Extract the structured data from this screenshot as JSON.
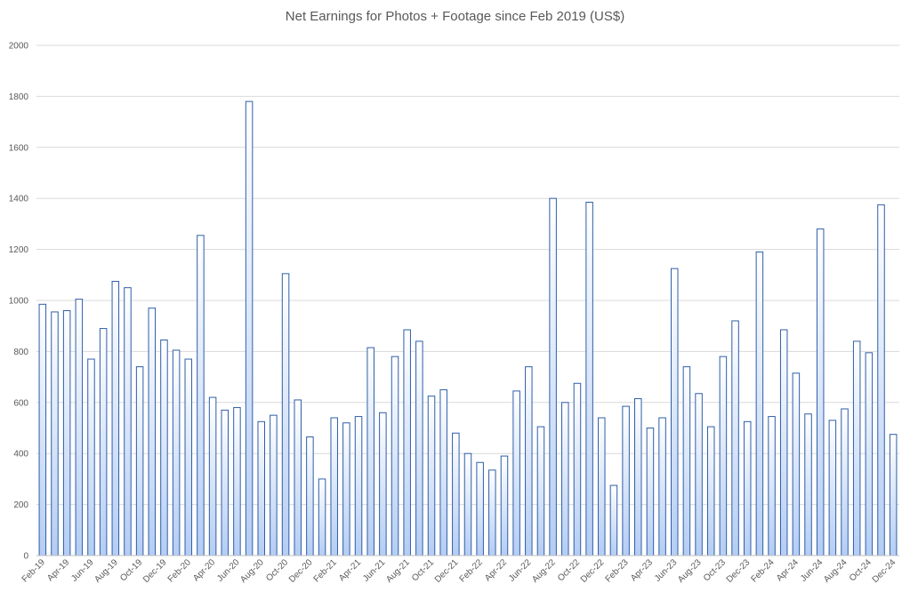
{
  "chart_data": {
    "type": "bar",
    "title": "Net Earnings for Photos + Footage since Feb 2019 (US$)",
    "xlabel": "",
    "ylabel": "",
    "ylim": [
      0,
      2000
    ],
    "yticks": [
      0,
      200,
      400,
      600,
      800,
      1000,
      1200,
      1400,
      1600,
      1800,
      2000
    ],
    "grid": true,
    "categories": [
      "Feb-19",
      "Mar-19",
      "Apr-19",
      "May-19",
      "Jun-19",
      "Jul-19",
      "Aug-19",
      "Sep-19",
      "Oct-19",
      "Nov-19",
      "Dec-19",
      "Jan-20",
      "Feb-20",
      "Mar-20",
      "Apr-20",
      "May-20",
      "Jun-20",
      "Jul-20",
      "Aug-20",
      "Sep-20",
      "Oct-20",
      "Nov-20",
      "Dec-20",
      "Jan-21",
      "Feb-21",
      "Mar-21",
      "Apr-21",
      "May-21",
      "Jun-21",
      "Jul-21",
      "Aug-21",
      "Sep-21",
      "Oct-21",
      "Nov-21",
      "Dec-21",
      "Jan-22",
      "Feb-22",
      "Mar-22",
      "Apr-22",
      "May-22",
      "Jun-22",
      "Jul-22",
      "Aug-22",
      "Sep-22",
      "Oct-22",
      "Nov-22",
      "Dec-22",
      "Jan-23",
      "Feb-23",
      "Mar-23",
      "Apr-23",
      "May-23",
      "Jun-23",
      "Jul-23",
      "Aug-23",
      "Sep-23",
      "Oct-23",
      "Nov-23",
      "Dec-23",
      "Jan-24",
      "Feb-24",
      "Mar-24",
      "Apr-24",
      "May-24",
      "Jun-24",
      "Jul-24",
      "Aug-24",
      "Sep-24",
      "Oct-24",
      "Nov-24",
      "Dec-24"
    ],
    "visible_tick_labels": [
      "Feb-19",
      "Apr-19",
      "Jun-19",
      "Aug-19",
      "Oct-19",
      "Dec-19",
      "Feb-20",
      "Apr-20",
      "Jun-20",
      "Aug-20",
      "Oct-20",
      "Dec-20",
      "Feb-21",
      "Apr-21",
      "Jun-21",
      "Aug-21",
      "Oct-21",
      "Dec-21",
      "Feb-22",
      "Apr-22",
      "Jun-22",
      "Aug-22",
      "Oct-22",
      "Dec-22",
      "Feb-23",
      "Apr-23",
      "Jun-23",
      "Aug-23",
      "Oct-23",
      "Dec-23",
      "Feb-24",
      "Apr-24",
      "Jun-24",
      "Aug-24",
      "Oct-24",
      "Dec-24"
    ],
    "values": [
      985,
      955,
      960,
      1005,
      770,
      890,
      1075,
      1050,
      740,
      970,
      845,
      805,
      770,
      1255,
      620,
      570,
      580,
      1780,
      525,
      550,
      1105,
      610,
      465,
      300,
      540,
      520,
      545,
      815,
      560,
      780,
      885,
      840,
      625,
      650,
      480,
      400,
      365,
      335,
      390,
      645,
      740,
      505,
      1400,
      600,
      675,
      1385,
      540,
      275,
      585,
      615,
      500,
      540,
      1125,
      740,
      635,
      505,
      780,
      920,
      525,
      1190,
      545,
      885,
      715,
      555,
      1280,
      530,
      575,
      840,
      795,
      1375,
      475
    ],
    "colors": {
      "bar_fill_top": "#ffffff",
      "bar_fill_bottom": "#b4cdf4",
      "bar_stroke": "#2f5ea8",
      "grid": "#d9d9d9",
      "axis": "#bfbfbf",
      "text": "#595959"
    }
  }
}
